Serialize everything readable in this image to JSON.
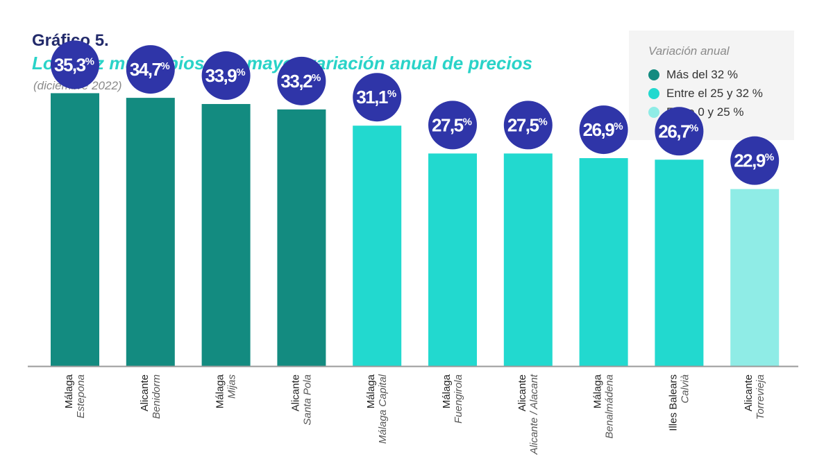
{
  "header": {
    "figure_label": "Gráfico 5.",
    "title": "Los diez municipios con mayor variación anual de precios",
    "subtitle": "(diciembre 2022)"
  },
  "legend": {
    "title": "Variación anual",
    "items": [
      {
        "label": "Más del 32 %",
        "color": "#138b80"
      },
      {
        "label": "Entre el 25 y 32 %",
        "color": "#22d9cf"
      },
      {
        "label": "Entre 0 y 25 %",
        "color": "#8fece6"
      }
    ]
  },
  "colors": {
    "bubble": "#2f35a8",
    "bubble_text": "#ffffff",
    "axis": "#9a9a9a",
    "province_text": "#222222",
    "municipality_text": "#555555"
  },
  "chart_data": {
    "type": "bar",
    "ylim": [
      0,
      40
    ],
    "value_suffix": "%",
    "categories": [
      {
        "province": "Málaga",
        "municipality": "Estepona",
        "value": 35.3,
        "label": "35,3",
        "group": 0
      },
      {
        "province": "Alicante",
        "municipality": "Benidorm",
        "value": 34.7,
        "label": "34,7",
        "group": 0
      },
      {
        "province": "Málaga",
        "municipality": "Mijas",
        "value": 33.9,
        "label": "33,9",
        "group": 0
      },
      {
        "province": "Alicante",
        "municipality": "Santa Pola",
        "value": 33.2,
        "label": "33,2",
        "group": 0
      },
      {
        "province": "Málaga",
        "municipality": "Málaga Capital",
        "value": 31.1,
        "label": "31,1",
        "group": 1
      },
      {
        "province": "Málaga",
        "municipality": "Fuengirola",
        "value": 27.5,
        "label": "27,5",
        "group": 1
      },
      {
        "province": "Alicante",
        "municipality": "Alicante / Alacant",
        "value": 27.5,
        "label": "27,5",
        "group": 1
      },
      {
        "province": "Málaga",
        "municipality": "Benalmádena",
        "value": 26.9,
        "label": "26,9",
        "group": 1
      },
      {
        "province": "Illes Balears",
        "municipality": "Calvià",
        "value": 26.7,
        "label": "26,7",
        "group": 1
      },
      {
        "province": "Alicante",
        "municipality": "Torrevieja",
        "value": 22.9,
        "label": "22,9",
        "group": 2
      }
    ]
  }
}
